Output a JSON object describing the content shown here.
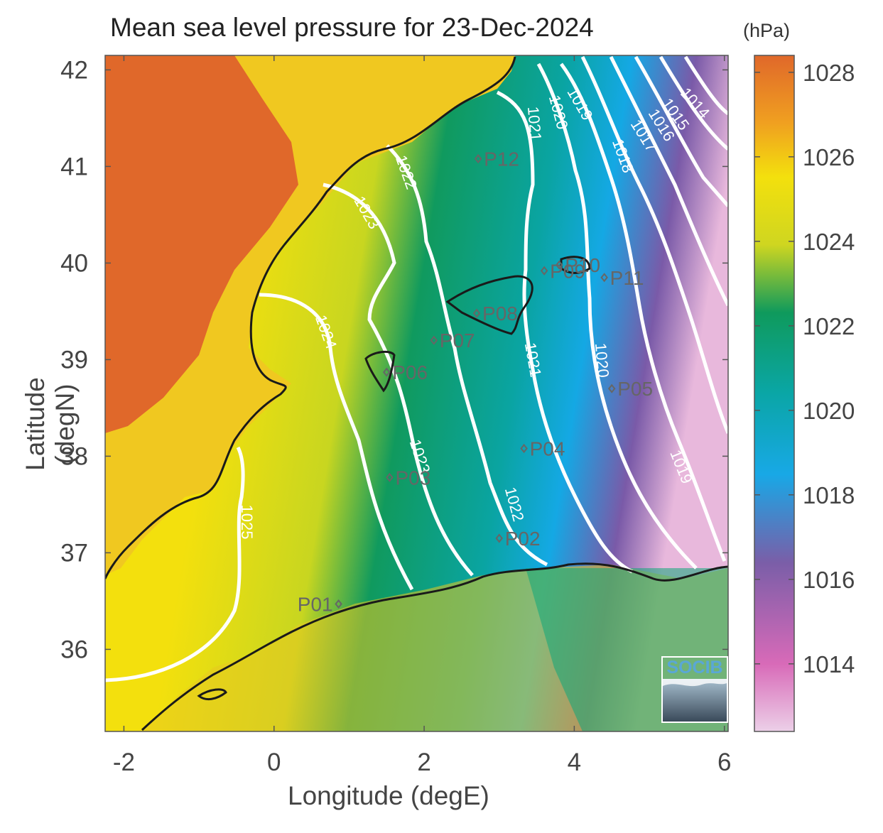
{
  "title": "Mean sea level pressure for 23-Dec-2024",
  "colorbar": {
    "unit": "(hPa)",
    "ticks": [
      1014,
      1016,
      1018,
      1020,
      1022,
      1024,
      1026,
      1028
    ],
    "range": [
      1012.4,
      1028.4
    ]
  },
  "axes": {
    "xlabel": "Longitude (degE)",
    "ylabel": "Latitude (degN)",
    "xticks": [
      -2,
      0,
      2,
      4,
      6
    ],
    "yticks": [
      36,
      37,
      38,
      39,
      40,
      41,
      42
    ],
    "xlim": [
      -2.25,
      6.05
    ],
    "ylim": [
      35.15,
      42.15
    ]
  },
  "contour_levels": [
    1014,
    1015,
    1016,
    1017,
    1018,
    1019,
    1020,
    1021,
    1022,
    1023,
    1024,
    1025
  ],
  "stations": [
    {
      "id": "P01",
      "lon": 0.86,
      "lat": 36.47
    },
    {
      "id": "P02",
      "lon": 3.0,
      "lat": 37.15
    },
    {
      "id": "P03",
      "lon": 1.54,
      "lat": 37.78
    },
    {
      "id": "P04",
      "lon": 3.33,
      "lat": 38.08
    },
    {
      "id": "P05",
      "lon": 4.5,
      "lat": 38.7
    },
    {
      "id": "P06",
      "lon": 1.5,
      "lat": 38.87
    },
    {
      "id": "P07",
      "lon": 2.13,
      "lat": 39.2
    },
    {
      "id": "P08",
      "lon": 2.7,
      "lat": 39.48
    },
    {
      "id": "P09",
      "lon": 3.6,
      "lat": 39.92
    },
    {
      "id": "P10",
      "lon": 3.8,
      "lat": 39.98
    },
    {
      "id": "P11",
      "lon": 4.4,
      "lat": 39.85
    },
    {
      "id": "P12",
      "lon": 2.72,
      "lat": 41.08
    }
  ],
  "logo": {
    "text": "SOCIB"
  },
  "colors": {
    "land_high": "#e0682a",
    "yellow": "#f0e010",
    "green": "#0c9a60",
    "teal": "#0fa8a8",
    "blue": "#10a8e6",
    "purple": "#7a5aa8",
    "pink": "#e8c0e0",
    "contour": "#ffffff",
    "coast": "#1a1a1a",
    "station": "#666666"
  }
}
